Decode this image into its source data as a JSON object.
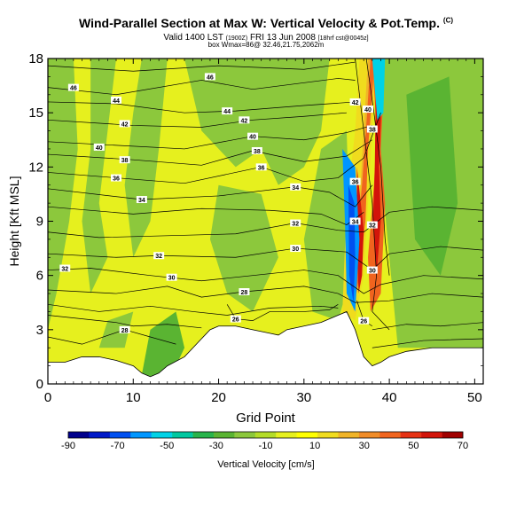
{
  "header": {
    "title": "Wind-Parallel Section at Max W: Vertical Velocity & Pot.Temp.",
    "title_unit": "(C)",
    "valid_line": "Valid 1400 LST",
    "valid_detail_a": "(1900Z)",
    "valid_date": "FRI 13 Jun 2008",
    "valid_detail_b": "[18hrf cst@0045z]",
    "wmax_line": "box Wmax=86@ 32.46,21.75,2062m"
  },
  "chart_data": {
    "type": "heatmap",
    "xlabel": "Grid Point",
    "ylabel": "Height [Kft MSL]",
    "xlim": [
      0,
      51
    ],
    "ylim": [
      0,
      18
    ],
    "x_ticks": [
      0,
      10,
      20,
      30,
      40,
      50
    ],
    "y_ticks": [
      0,
      3,
      6,
      9,
      12,
      15,
      18
    ],
    "colorbar": {
      "label": "Vertical Velocity [cm/s]",
      "tick_labels": [
        -90,
        -70,
        -50,
        -30,
        -10,
        10,
        30,
        50,
        70
      ],
      "colors": [
        "#00008c",
        "#0019c8",
        "#0050f0",
        "#0096ff",
        "#00d2e6",
        "#00c8a0",
        "#28b44b",
        "#5ab432",
        "#8cc83c",
        "#b4dc28",
        "#e6f01e",
        "#ffff00",
        "#f0dc1e",
        "#f0b428",
        "#f08c28",
        "#f0641e",
        "#e63214",
        "#d2140a",
        "#a00000"
      ]
    },
    "theta_contours": {
      "unit": "C",
      "labels": [
        {
          "value": 46,
          "x": 3,
          "y": 16.4
        },
        {
          "value": 46,
          "x": 19,
          "y": 17.0
        },
        {
          "value": 44,
          "x": 8,
          "y": 15.7
        },
        {
          "value": 44,
          "x": 21,
          "y": 15.1
        },
        {
          "value": 42,
          "x": 9,
          "y": 14.4
        },
        {
          "value": 42,
          "x": 23,
          "y": 14.6
        },
        {
          "value": 42,
          "x": 36,
          "y": 15.6
        },
        {
          "value": 40,
          "x": 6,
          "y": 13.1
        },
        {
          "value": 40,
          "x": 24,
          "y": 13.7
        },
        {
          "value": 40,
          "x": 37.5,
          "y": 15.2
        },
        {
          "value": 38,
          "x": 9,
          "y": 12.4
        },
        {
          "value": 38,
          "x": 24.5,
          "y": 12.9
        },
        {
          "value": 38,
          "x": 38,
          "y": 14.1
        },
        {
          "value": 36,
          "x": 8,
          "y": 11.4
        },
        {
          "value": 36,
          "x": 25,
          "y": 12.0
        },
        {
          "value": 36,
          "x": 36,
          "y": 11.2
        },
        {
          "value": 34,
          "x": 11,
          "y": 10.2
        },
        {
          "value": 34,
          "x": 29,
          "y": 10.9
        },
        {
          "value": 34,
          "x": 36,
          "y": 9.0
        },
        {
          "value": 32,
          "x": 2,
          "y": 6.4
        },
        {
          "value": 32,
          "x": 13,
          "y": 7.1
        },
        {
          "value": 32,
          "x": 29,
          "y": 8.9
        },
        {
          "value": 30,
          "x": 14.5,
          "y": 5.9
        },
        {
          "value": 30,
          "x": 29,
          "y": 7.5
        },
        {
          "value": 30,
          "x": 38,
          "y": 6.3
        },
        {
          "value": 28,
          "x": 23,
          "y": 5.1
        },
        {
          "value": 28,
          "x": 9,
          "y": 3.0
        },
        {
          "value": 26,
          "x": 22,
          "y": 3.6
        },
        {
          "value": 26,
          "x": 37,
          "y": 3.5
        },
        {
          "value": 32,
          "x": 38,
          "y": 8.8
        }
      ]
    }
  }
}
